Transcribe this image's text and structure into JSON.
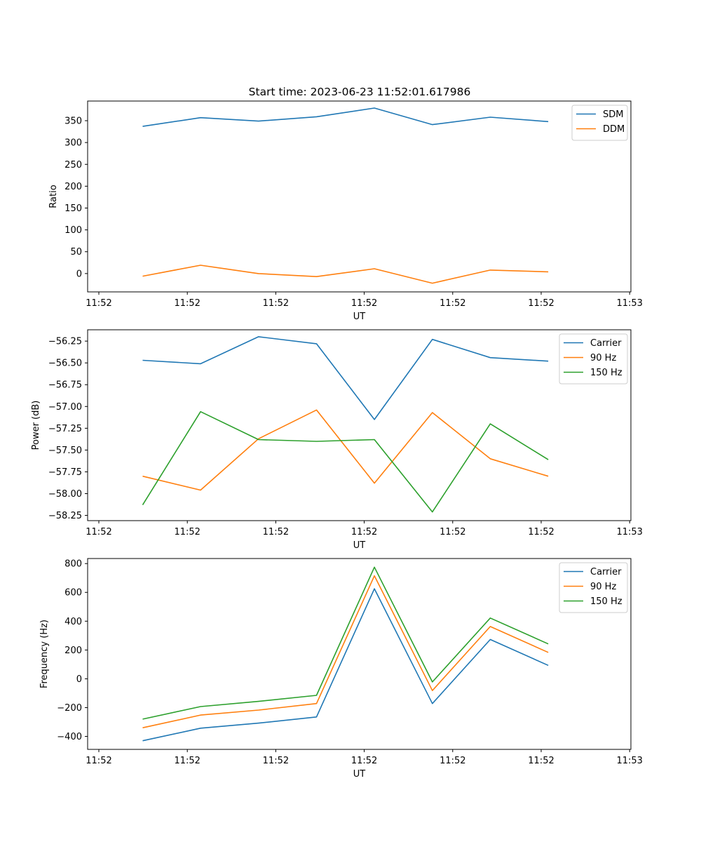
{
  "figure": {
    "title": "Start time: 2023-06-23 11:52:01.617986"
  },
  "chart_data": [
    {
      "type": "line",
      "title": "Start time: 2023-06-23 11:52:01.617986",
      "xlabel": "UT",
      "ylabel": "Ratio",
      "x_tick_labels": [
        "11:52",
        "11:52",
        "11:52",
        "11:52",
        "11:52",
        "11:52",
        "11:52"
      ],
      "last_x_tick_label": "11:53",
      "x_tick_count": 7,
      "y_ticks": [
        0,
        50,
        100,
        150,
        200,
        250,
        300,
        350
      ],
      "y_tick_labels": [
        "0",
        "50",
        "100",
        "150",
        "200",
        "250",
        "300",
        "350"
      ],
      "ylim": [
        -42,
        395
      ],
      "legend_position": "top-right",
      "series": [
        {
          "name": "SDM",
          "color": "#1f77b4",
          "values": [
            337,
            357,
            349,
            359,
            379,
            341,
            358,
            348
          ]
        },
        {
          "name": "DDM",
          "color": "#ff7f0e",
          "values": [
            -6,
            19,
            0,
            -7,
            11,
            -22,
            8,
            4
          ]
        }
      ]
    },
    {
      "type": "line",
      "xlabel": "UT",
      "ylabel": "Power (dB)",
      "x_tick_labels": [
        "11:52",
        "11:52",
        "11:52",
        "11:52",
        "11:52",
        "11:52",
        "11:52"
      ],
      "last_x_tick_label": "11:53",
      "x_tick_count": 7,
      "y_ticks": [
        -58.25,
        -58.0,
        -57.75,
        -57.5,
        -57.25,
        -57.0,
        -56.75,
        -56.5,
        -56.25
      ],
      "y_tick_labels": [
        "−58.25",
        "−58.00",
        "−57.75",
        "−57.50",
        "−57.25",
        "−57.00",
        "−56.75",
        "−56.50",
        "−56.25"
      ],
      "ylim": [
        -58.31,
        -56.12
      ],
      "legend_position": "top-right",
      "series": [
        {
          "name": "Carrier",
          "color": "#1f77b4",
          "values": [
            -56.47,
            -56.51,
            -56.2,
            -56.28,
            -57.15,
            -56.23,
            -56.44,
            -56.48
          ]
        },
        {
          "name": "90 Hz",
          "color": "#ff7f0e",
          "values": [
            -57.8,
            -57.96,
            -57.37,
            -57.04,
            -57.88,
            -57.07,
            -57.6,
            -57.8
          ]
        },
        {
          "name": "150 Hz",
          "color": "#2ca02c",
          "values": [
            -58.13,
            -57.06,
            -57.38,
            -57.4,
            -57.38,
            -58.21,
            -57.2,
            -57.61
          ]
        }
      ]
    },
    {
      "type": "line",
      "xlabel": "UT",
      "ylabel": "Frequency (Hz)",
      "x_tick_labels": [
        "11:52",
        "11:52",
        "11:52",
        "11:52",
        "11:52",
        "11:52",
        "11:52"
      ],
      "last_x_tick_label": "11:53",
      "x_tick_count": 7,
      "y_ticks": [
        -400,
        -200,
        0,
        200,
        400,
        600,
        800
      ],
      "y_tick_labels": [
        "−400",
        "−200",
        "0",
        "200",
        "400",
        "600",
        "800"
      ],
      "ylim": [
        -490,
        835
      ],
      "legend_position": "top-right",
      "series": [
        {
          "name": "Carrier",
          "color": "#1f77b4",
          "values": [
            -430,
            -343,
            -308,
            -265,
            625,
            -172,
            273,
            93
          ]
        },
        {
          "name": "90 Hz",
          "color": "#ff7f0e",
          "values": [
            -340,
            -252,
            -217,
            -172,
            715,
            -82,
            363,
            183
          ]
        },
        {
          "name": "150 Hz",
          "color": "#2ca02c",
          "values": [
            -280,
            -193,
            -157,
            -115,
            775,
            -22,
            422,
            242
          ]
        }
      ]
    }
  ]
}
